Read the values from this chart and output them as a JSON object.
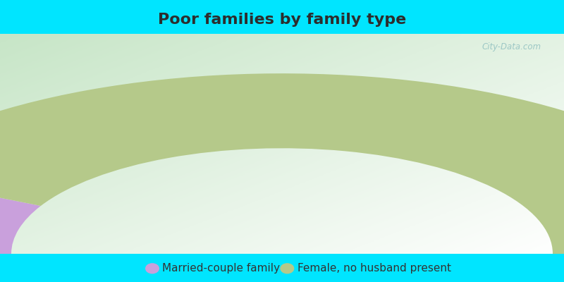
{
  "title": "Poor families by family type",
  "title_color": "#2d2d2d",
  "title_fontsize": 16,
  "bg_cyan": "#00e5ff",
  "segments": [
    {
      "label": "Married-couple family",
      "value": 15,
      "color": "#c9a0dc"
    },
    {
      "label": "Female, no husband present",
      "value": 85,
      "color": "#b5c98a"
    }
  ],
  "legend_text_color": "#333333",
  "legend_fontsize": 11,
  "watermark": "City-Data.com",
  "watermark_color": "#90c0c0",
  "top_bar_height": 0.12,
  "bottom_bar_height": 0.1
}
